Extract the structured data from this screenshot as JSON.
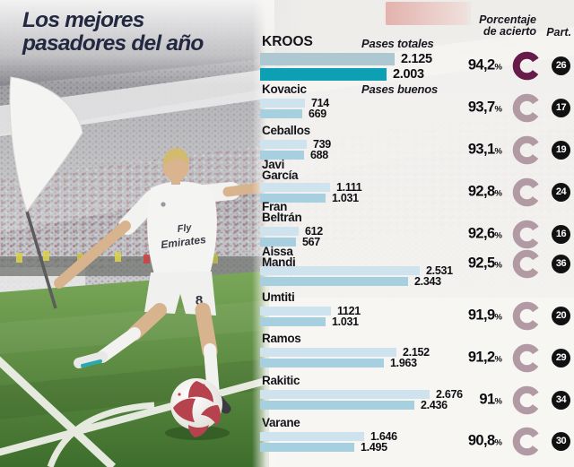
{
  "title": {
    "full": "Los mejores pasadores del año",
    "lines": [
      "Los mejores",
      "pasadores del año"
    ]
  },
  "columns": {
    "accuracy_header_lines": [
      "Porcentaje",
      "de acierto"
    ],
    "participation_header": "Part."
  },
  "legend": {
    "totales": "Pases totales",
    "buenos": "Pases buenos"
  },
  "symbols": {
    "percent": "%"
  },
  "photo": {
    "shirt_sponsor_line1": "Fly",
    "shirt_sponsor_line2": "Emirates",
    "shorts_number": "8"
  },
  "colors": {
    "title": "#222840",
    "bar_total_highlight": "#adc8d0",
    "bar_good_highlight": "#0d9fb4",
    "bar_total": "#cfe3ee",
    "bar_good": "#a6cfe0",
    "donut_highlight": "#671b4b",
    "donut": "#b29aa4",
    "badge_bg": "#111111",
    "badge_text": "#ffffff"
  },
  "chart_data": {
    "type": "bar",
    "orientation": "horizontal",
    "title": "Los mejores pasadores del año",
    "series_labels": [
      "Pases totales",
      "Pases buenos"
    ],
    "value_axis_hidden": true,
    "players": [
      {
        "name": "KROOS",
        "name_lines": [
          "KROOS"
        ],
        "totales": 2125,
        "totales_label": "2.125",
        "buenos": 2003,
        "buenos_label": "2.003",
        "pct": 94.2,
        "pct_label": "94,2",
        "part": 26,
        "highlight": true
      },
      {
        "name": "Kovacic",
        "name_lines": [
          "Kovacic"
        ],
        "totales": 714,
        "totales_label": "714",
        "buenos": 669,
        "buenos_label": "669",
        "pct": 93.7,
        "pct_label": "93,7",
        "part": 17,
        "highlight": false
      },
      {
        "name": "Ceballos",
        "name_lines": [
          "Ceballos"
        ],
        "totales": 739,
        "totales_label": "739",
        "buenos": 688,
        "buenos_label": "688",
        "pct": 93.1,
        "pct_label": "93,1",
        "part": 19,
        "highlight": false
      },
      {
        "name": "Javi García",
        "name_lines": [
          "Javi",
          "García"
        ],
        "totales": 1111,
        "totales_label": "1.111",
        "buenos": 1031,
        "buenos_label": "1.031",
        "pct": 92.8,
        "pct_label": "92,8",
        "part": 24,
        "highlight": false
      },
      {
        "name": "Fran Beltrán",
        "name_lines": [
          "Fran",
          "Beltrán"
        ],
        "totales": 612,
        "totales_label": "612",
        "buenos": 567,
        "buenos_label": "567",
        "pct": 92.6,
        "pct_label": "92,6",
        "part": 16,
        "highlight": false
      },
      {
        "name": "Aissa Mandi",
        "name_lines": [
          "Aissa",
          "Mandi"
        ],
        "totales": 2531,
        "totales_label": "2.531",
        "buenos": 2343,
        "buenos_label": "2.343",
        "pct": 92.5,
        "pct_label": "92,5",
        "part": 36,
        "highlight": false
      },
      {
        "name": "Umtiti",
        "name_lines": [
          "Umtiti"
        ],
        "totales": 1121,
        "totales_label": "1121",
        "buenos": 1031,
        "buenos_label": "1.031",
        "pct": 91.9,
        "pct_label": "91,9",
        "part": 20,
        "highlight": false
      },
      {
        "name": "Ramos",
        "name_lines": [
          "Ramos"
        ],
        "totales": 2152,
        "totales_label": "2.152",
        "buenos": 1963,
        "buenos_label": "1.963",
        "pct": 91.2,
        "pct_label": "91,2",
        "part": 29,
        "highlight": false
      },
      {
        "name": "Rakitic",
        "name_lines": [
          "Rakitic"
        ],
        "totales": 2676,
        "totales_label": "2.676",
        "buenos": 2436,
        "buenos_label": "2.436",
        "pct": 91.0,
        "pct_label": "91",
        "part": 34,
        "highlight": false
      },
      {
        "name": "Varane",
        "name_lines": [
          "Varane"
        ],
        "totales": 1646,
        "totales_label": "1.646",
        "buenos": 1495,
        "buenos_label": "1.495",
        "pct": 90.8,
        "pct_label": "90,8",
        "part": 30,
        "highlight": false
      }
    ]
  }
}
